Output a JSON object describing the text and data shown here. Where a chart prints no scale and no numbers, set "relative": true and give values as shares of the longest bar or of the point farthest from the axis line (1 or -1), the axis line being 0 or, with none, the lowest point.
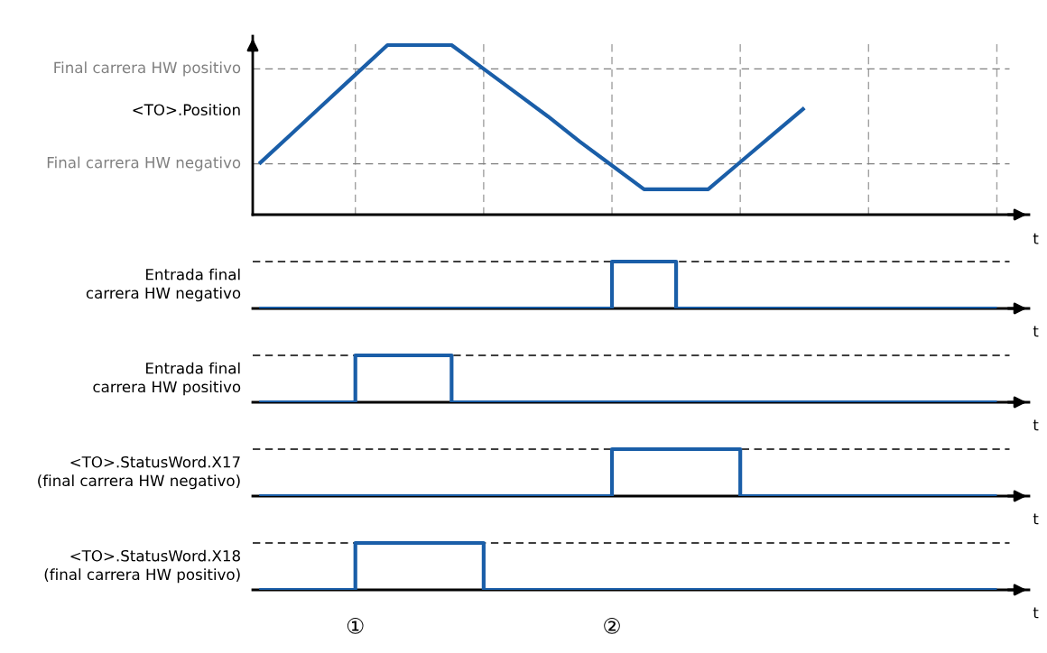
{
  "chart_data": [
    {
      "type": "line",
      "relative": true,
      "ylabel": "<TO>.Position",
      "xlabel": "t",
      "categories": [
        null,
        null,
        null,
        null,
        null,
        null,
        null,
        null,
        null,
        null,
        null,
        null,
        null,
        null,
        null,
        null,
        null,
        null,
        null,
        null,
        null,
        null,
        null,
        null,
        null
      ],
      "series": [
        {
          "color": "#1a5ea8",
          "values": [
            0.3,
            0.475,
            0.65,
            0.825,
            1,
            1,
            1,
            0.86,
            0.72,
            0.58,
            0.43,
            0.29,
            0.15,
            0.15,
            0.15,
            0.31,
            0.47,
            0.63,
            null,
            null,
            null,
            null,
            null,
            null,
            null
          ]
        }
      ],
      "ref_lines": [
        {
          "axis": "y",
          "value": 0.86,
          "label": "Final carrera HW positivo",
          "color": "#808080",
          "line_style": "dashed"
        },
        {
          "axis": "y",
          "value": 0.3,
          "label": "Final carrera HW negativo",
          "color": "#808080",
          "line_style": "dashed"
        }
      ],
      "grid": "x"
    },
    {
      "type": "step",
      "relative": true,
      "ylabel": "Entrada final\ncarrera HW negativo",
      "xlabel": "t",
      "categories": [
        null,
        null,
        null,
        null,
        null,
        null,
        null,
        null,
        null,
        null,
        null,
        null,
        null,
        null,
        null,
        null,
        null,
        null,
        null,
        null,
        null,
        null,
        null,
        null,
        null
      ],
      "series": [
        {
          "color": "#1a5ea8",
          "values": [
            0,
            0,
            0,
            0,
            0,
            0,
            0,
            0,
            0,
            0,
            0,
            1,
            1,
            0,
            0,
            0,
            0,
            0,
            0,
            0,
            0,
            0,
            0,
            0,
            null
          ]
        }
      ],
      "ref_lines": [
        {
          "axis": "y",
          "value": 1,
          "color": "#000000",
          "line_style": "dashed"
        }
      ]
    },
    {
      "type": "step",
      "relative": true,
      "ylabel": "Entrada final\ncarrera HW positivo",
      "xlabel": "t",
      "categories": [
        null,
        null,
        null,
        null,
        null,
        null,
        null,
        null,
        null,
        null,
        null,
        null,
        null,
        null,
        null,
        null,
        null,
        null,
        null,
        null,
        null,
        null,
        null,
        null,
        null
      ],
      "series": [
        {
          "color": "#1a5ea8",
          "values": [
            0,
            0,
            0,
            1,
            1,
            1,
            0,
            0,
            0,
            0,
            0,
            0,
            0,
            0,
            0,
            0,
            0,
            0,
            0,
            0,
            0,
            0,
            0,
            0,
            null
          ]
        }
      ],
      "ref_lines": [
        {
          "axis": "y",
          "value": 1,
          "color": "#000000",
          "line_style": "dashed"
        }
      ]
    },
    {
      "type": "step",
      "relative": true,
      "ylabel": "<TO>.StatusWord.X17\n(final carrera HW negativo)",
      "xlabel": "t",
      "categories": [
        null,
        null,
        null,
        null,
        null,
        null,
        null,
        null,
        null,
        null,
        null,
        null,
        null,
        null,
        null,
        null,
        null,
        null,
        null,
        null,
        null,
        null,
        null,
        null,
        null
      ],
      "series": [
        {
          "color": "#1a5ea8",
          "values": [
            0,
            0,
            0,
            0,
            0,
            0,
            0,
            0,
            0,
            0,
            0,
            1,
            1,
            1,
            1,
            0,
            0,
            0,
            0,
            0,
            0,
            0,
            0,
            0,
            null
          ]
        }
      ],
      "ref_lines": [
        {
          "axis": "y",
          "value": 1,
          "color": "#000000",
          "line_style": "dashed"
        }
      ]
    },
    {
      "type": "step",
      "relative": true,
      "ylabel": "<TO>.StatusWord.X18\n(final carrera HW positivo)",
      "xlabel": "t",
      "tick_labels": "x",
      "categories": [
        null,
        null,
        null,
        "①",
        null,
        null,
        null,
        null,
        null,
        null,
        null,
        "②",
        null,
        null,
        null,
        null,
        null,
        null,
        null,
        null,
        null,
        null,
        null,
        null,
        null
      ],
      "series": [
        {
          "color": "#1a5ea8",
          "values": [
            0,
            0,
            0,
            1,
            1,
            1,
            1,
            0,
            0,
            0,
            0,
            0,
            0,
            0,
            0,
            0,
            0,
            0,
            0,
            0,
            0,
            0,
            0,
            0,
            null
          ]
        }
      ],
      "ref_lines": [
        {
          "axis": "y",
          "value": 1,
          "color": "#000000",
          "line_style": "dashed"
        }
      ]
    }
  ]
}
